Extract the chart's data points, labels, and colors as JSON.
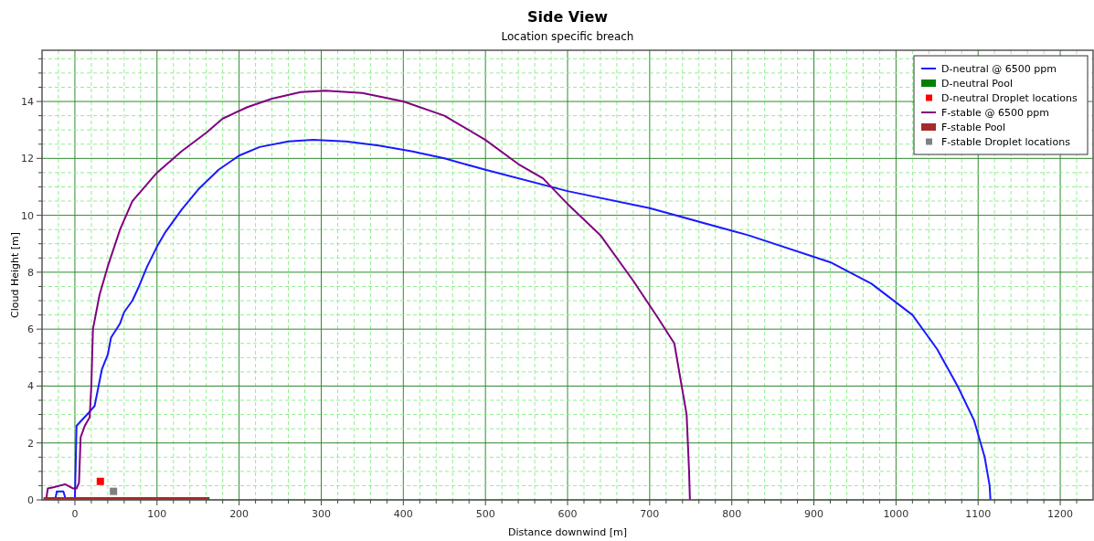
{
  "chart_data": {
    "type": "line",
    "title": "Side View",
    "subtitle": "Location specific breach",
    "xlabel": "Distance downwind [m]",
    "ylabel": "Cloud Height [m]",
    "xlim": [
      -40,
      1240
    ],
    "ylim": [
      0,
      15.8
    ],
    "xticks": [
      {
        "value": -20,
        "label": null
      },
      0,
      {
        "value": 20,
        "label": null
      },
      {
        "value": 40,
        "label": null
      },
      {
        "value": 60,
        "label": null
      },
      {
        "value": 80,
        "label": null
      },
      100,
      {
        "value": 120,
        "label": null
      },
      {
        "value": 140,
        "label": null
      },
      {
        "value": 160,
        "label": null
      },
      {
        "value": 180,
        "label": null
      },
      200,
      {
        "value": 220,
        "label": null
      },
      {
        "value": 240,
        "label": null
      },
      {
        "value": 260,
        "label": null
      },
      {
        "value": 280,
        "label": null
      },
      300,
      {
        "value": 320,
        "label": null
      },
      {
        "value": 340,
        "label": null
      },
      {
        "value": 360,
        "label": null
      },
      {
        "value": 380,
        "label": null
      },
      400,
      {
        "value": 420,
        "label": null
      },
      {
        "value": 440,
        "label": null
      },
      {
        "value": 460,
        "label": null
      },
      {
        "value": 480,
        "label": null
      },
      500,
      {
        "value": 520,
        "label": null
      },
      {
        "value": 540,
        "label": null
      },
      {
        "value": 560,
        "label": null
      },
      {
        "value": 580,
        "label": null
      },
      600,
      {
        "value": 620,
        "label": null
      },
      {
        "value": 640,
        "label": null
      },
      {
        "value": 660,
        "label": null
      },
      {
        "value": 680,
        "label": null
      },
      700,
      {
        "value": 720,
        "label": null
      },
      {
        "value": 740,
        "label": null
      },
      {
        "value": 760,
        "label": null
      },
      {
        "value": 780,
        "label": null
      },
      800,
      {
        "value": 820,
        "label": null
      },
      {
        "value": 840,
        "label": null
      },
      {
        "value": 860,
        "label": null
      },
      {
        "value": 880,
        "label": null
      },
      900,
      {
        "value": 920,
        "label": null
      },
      {
        "value": 940,
        "label": null
      },
      {
        "value": 960,
        "label": null
      },
      {
        "value": 980,
        "label": null
      },
      1000,
      {
        "value": 1020,
        "label": null
      },
      {
        "value": 1040,
        "label": null
      },
      {
        "value": 1060,
        "label": null
      },
      {
        "value": 1080,
        "label": null
      },
      1100,
      {
        "value": 1120,
        "label": null
      },
      {
        "value": 1140,
        "label": null
      },
      {
        "value": 1160,
        "label": null
      },
      {
        "value": 1180,
        "label": null
      },
      1200,
      {
        "value": 1220,
        "label": null
      }
    ],
    "yticks": [
      0,
      {
        "value": 0.5,
        "label": null
      },
      {
        "value": 1,
        "label": null
      },
      {
        "value": 1.5,
        "label": null
      },
      2,
      {
        "value": 2.5,
        "label": null
      },
      {
        "value": 3,
        "label": null
      },
      {
        "value": 3.5,
        "label": null
      },
      4,
      {
        "value": 4.5,
        "label": null
      },
      {
        "value": 5,
        "label": null
      },
      {
        "value": 5.5,
        "label": null
      },
      6,
      {
        "value": 6.5,
        "label": null
      },
      {
        "value": 7,
        "label": null
      },
      {
        "value": 7.5,
        "label": null
      },
      8,
      {
        "value": 8.5,
        "label": null
      },
      {
        "value": 9,
        "label": null
      },
      {
        "value": 9.5,
        "label": null
      },
      10,
      {
        "value": 10.5,
        "label": null
      },
      {
        "value": 11,
        "label": null
      },
      {
        "value": 11.5,
        "label": null
      },
      12,
      {
        "value": 12.5,
        "label": null
      },
      {
        "value": 13,
        "label": null
      },
      {
        "value": 13.5,
        "label": null
      },
      14,
      {
        "value": 14.5,
        "label": null
      },
      {
        "value": 15,
        "label": null
      },
      {
        "value": 15.5,
        "label": null
      }
    ],
    "grid": true,
    "legend": "top right",
    "line_style": "solid",
    "series": [
      {
        "name": "D-neutral @ 6500 ppm",
        "color": "#1a1aff",
        "x": [
          -24,
          -22,
          -14,
          -11,
          null,
          0,
          2,
          10,
          18,
          24,
          33,
          40,
          44,
          55,
          60,
          70,
          78,
          88,
          100,
          110,
          130,
          150,
          175,
          200,
          225,
          260,
          290,
          330,
          370,
          410,
          450,
          500,
          600,
          700,
          820,
          920,
          970,
          1020,
          1050,
          1075,
          1095,
          1108,
          1114,
          1115
        ],
        "values": [
          0,
          0.3,
          0.3,
          0,
          null,
          0,
          2.6,
          2.85,
          3.1,
          3.3,
          4.6,
          5.1,
          5.7,
          6.2,
          6.6,
          7.0,
          7.5,
          8.2,
          8.9,
          9.4,
          10.2,
          10.9,
          11.6,
          12.1,
          12.4,
          12.6,
          12.65,
          12.6,
          12.45,
          12.25,
          12.0,
          11.6,
          10.85,
          10.25,
          9.3,
          8.35,
          7.6,
          6.5,
          5.3,
          4.0,
          2.8,
          1.5,
          0.5,
          0
        ]
      },
      {
        "name": "D-neutral Pool",
        "color": "#008000",
        "type": "area",
        "x": [
          -38,
          164
        ],
        "values": [
          0.1,
          0.1
        ]
      },
      {
        "name": "D-neutral Droplet locations",
        "color": "#ff0000",
        "type": "scatter",
        "marker": "square",
        "x": [
          31
        ],
        "values": [
          0.65
        ]
      },
      {
        "name": "F-stable @ 6500 ppm",
        "color": "#800080",
        "x": [
          -35,
          -33,
          -25,
          -12,
          -2,
          2,
          5,
          7,
          12,
          18,
          20,
          22,
          30,
          40,
          55,
          70,
          100,
          130,
          160,
          180,
          210,
          240,
          275,
          305,
          350,
          400,
          450,
          500,
          540,
          570,
          600,
          640,
          680,
          710,
          730,
          745,
          748,
          749
        ],
        "values": [
          0,
          0.4,
          0.45,
          0.55,
          0.4,
          0.4,
          0.6,
          2.2,
          2.6,
          2.9,
          4,
          6.0,
          7.2,
          8.2,
          9.5,
          10.5,
          11.5,
          12.25,
          12.9,
          13.4,
          13.8,
          14.1,
          14.33,
          14.38,
          14.3,
          14.0,
          13.5,
          12.65,
          11.8,
          11.3,
          10.4,
          9.3,
          7.7,
          6.4,
          5.5,
          3,
          1,
          0
        ]
      },
      {
        "name": "F-stable Pool",
        "color": "#a52a2a",
        "type": "area",
        "x": [
          -38,
          162
        ],
        "values": [
          0.1,
          0.1
        ]
      },
      {
        "name": "F-stable Droplet locations",
        "color": "#808080",
        "type": "scatter",
        "marker": "square",
        "x": [
          47
        ],
        "values": [
          0.3
        ]
      }
    ]
  }
}
